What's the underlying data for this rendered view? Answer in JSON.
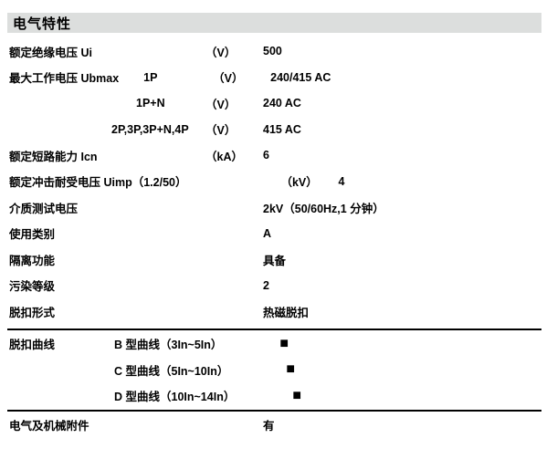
{
  "section": {
    "title": "电气特性"
  },
  "colors": {
    "header_bg": "#dcdedd",
    "text": "#000000",
    "divider": "#000000"
  },
  "icons": {
    "availability_square": "■"
  },
  "table": {
    "rows": [
      {
        "label": "额定绝缘电压 Ui",
        "sub": "",
        "unit": "（V）",
        "value": "500"
      },
      {
        "label": "最大工作电压 Ubmax",
        "sub": "1P",
        "unit": "（V）",
        "value": "240/415 AC"
      },
      {
        "label": "",
        "sub": "1P+N",
        "unit": "（V）",
        "value": "240 AC"
      },
      {
        "label": "",
        "sub": "2P,3P,3P+N,4P",
        "unit": "（V）",
        "value": "415 AC"
      },
      {
        "label": "额定短路能力 Icn",
        "sub": "",
        "unit": "（kA）",
        "value": "6"
      },
      {
        "label": "额定冲击耐受电压 Uimp（1.2/50）",
        "sub": "",
        "unit": "（kV）",
        "value": "4"
      },
      {
        "label": "介质测试电压",
        "sub": "",
        "unit": "",
        "value": "2kV（50/60Hz,1 分钟）"
      },
      {
        "label": "使用类别",
        "sub": "",
        "unit": "",
        "value": "A"
      },
      {
        "label": "隔离功能",
        "sub": "",
        "unit": "",
        "value": "具备"
      },
      {
        "label": "污染等级",
        "sub": "",
        "unit": "",
        "value": "2"
      },
      {
        "label": "脱扣形式",
        "sub": "",
        "unit": "",
        "value": "热磁脱扣"
      },
      {
        "label": "脱扣曲线",
        "sub": "B 型曲线（3In~5In）",
        "unit": "",
        "value": "■"
      },
      {
        "label": "",
        "sub": "C 型曲线（5In~10In）",
        "unit": "",
        "value": "■"
      },
      {
        "label": "",
        "sub": "D 型曲线（10In~14In）",
        "unit": "",
        "value": "■"
      },
      {
        "label": "电气及机械附件",
        "sub": "",
        "unit": "",
        "value": "有"
      }
    ]
  }
}
